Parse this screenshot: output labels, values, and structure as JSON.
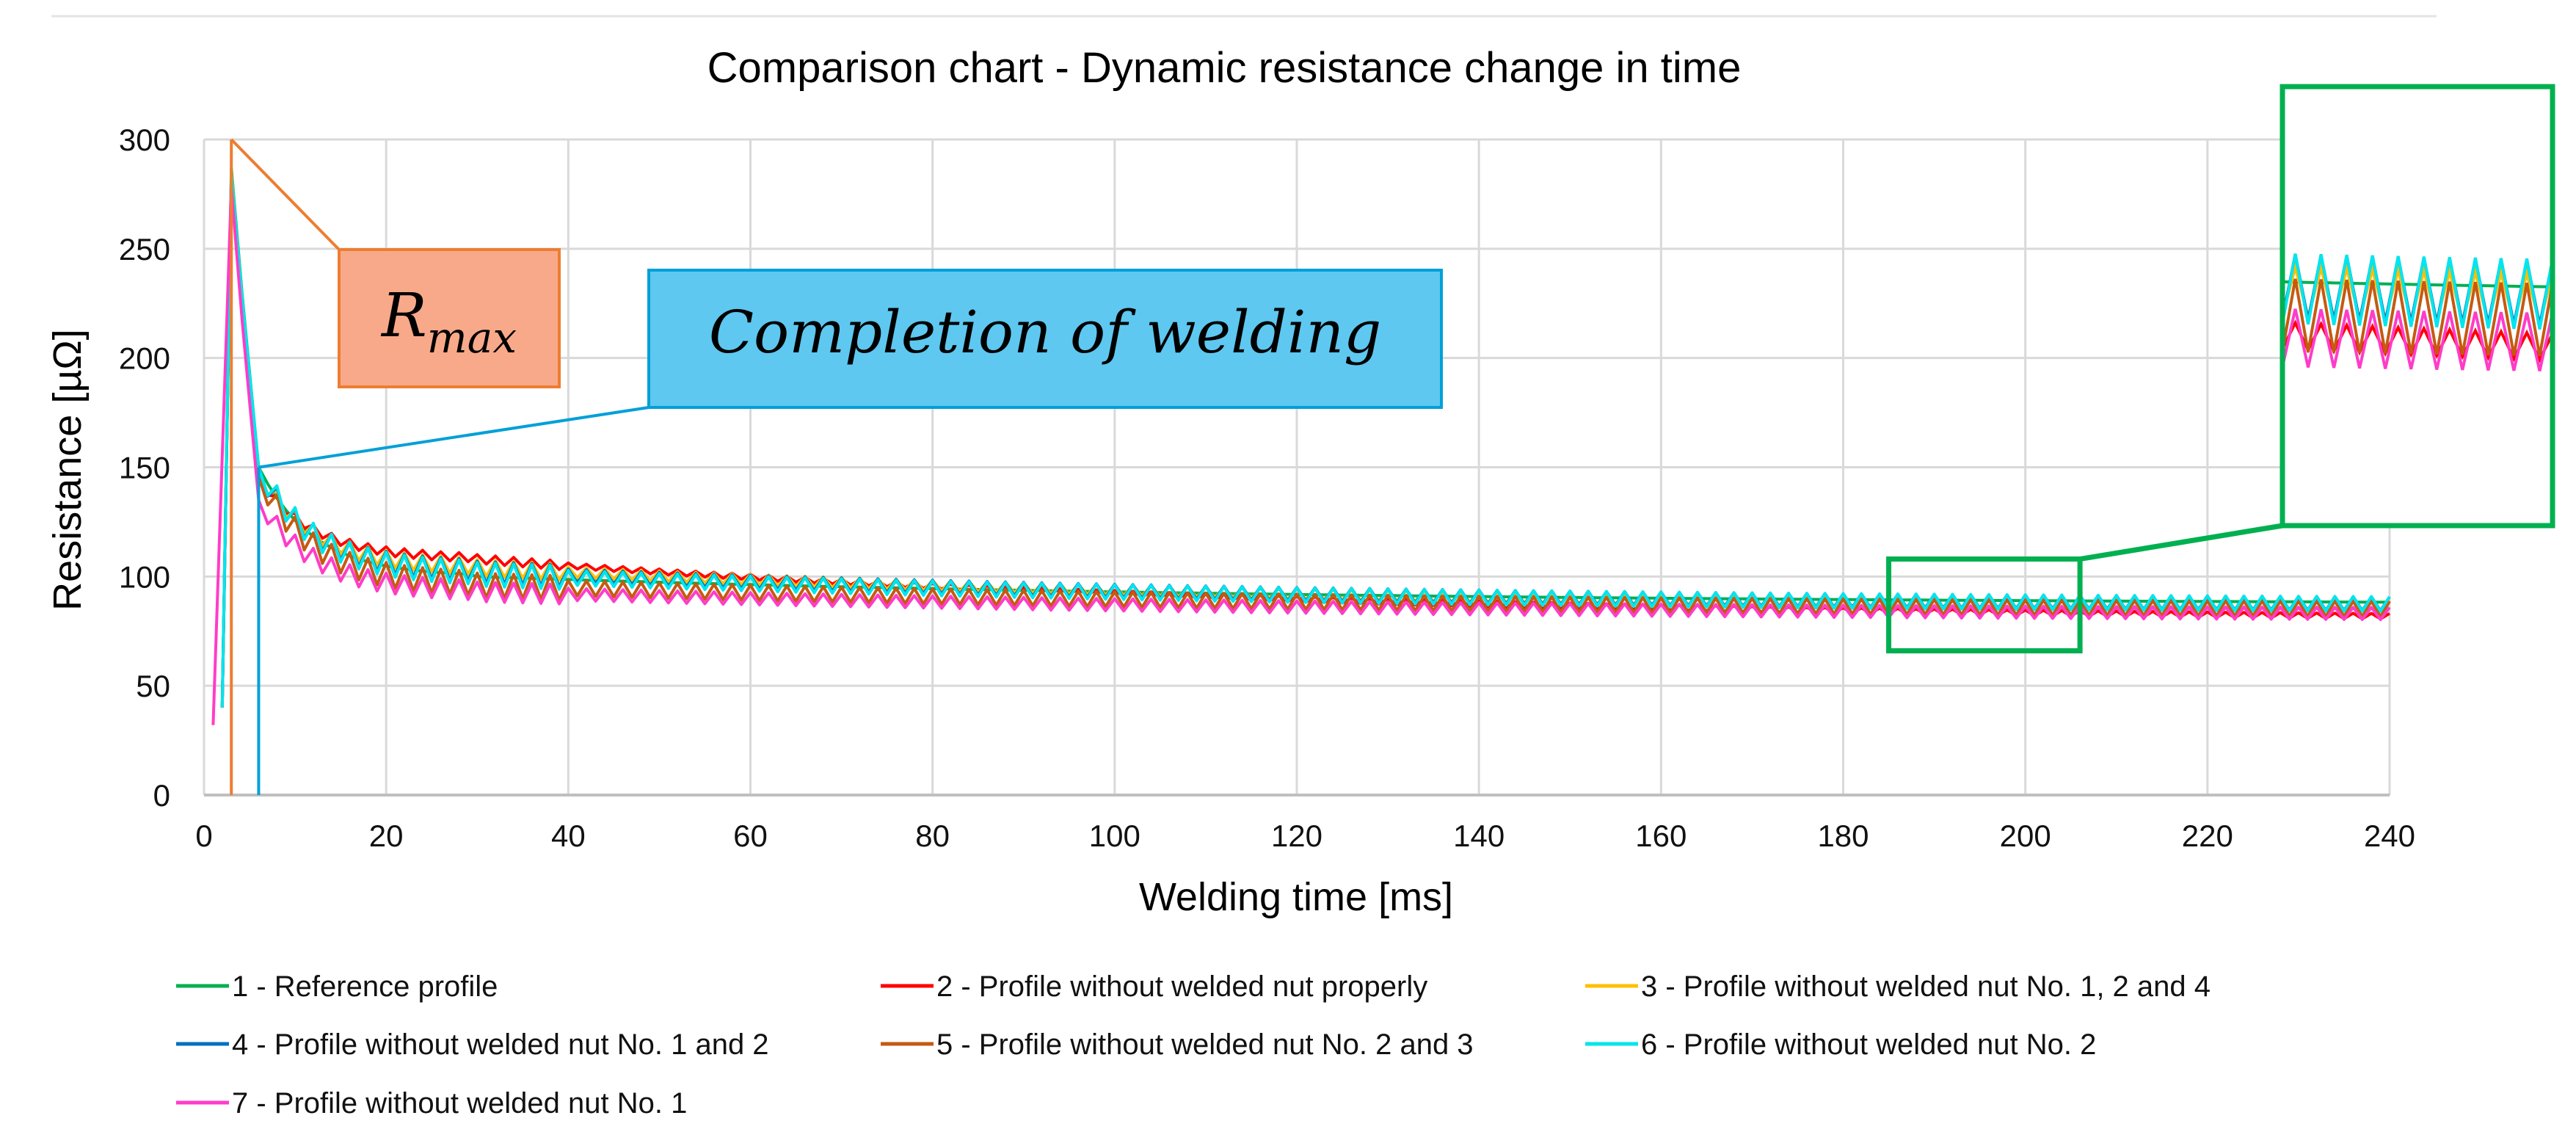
{
  "chart_data": {
    "type": "line",
    "title": "Comparison chart - Dynamic resistance change in time",
    "xlabel": "Welding time [ms]",
    "ylabel": "Resistance [µΩ]",
    "xlim": [
      0,
      240
    ],
    "ylim": [
      0,
      300
    ],
    "xticks": [
      0,
      20,
      40,
      60,
      80,
      100,
      120,
      140,
      160,
      180,
      200,
      220,
      240
    ],
    "yticks": [
      0,
      50,
      100,
      150,
      200,
      250,
      300
    ],
    "grid": true,
    "legend_position": "bottom",
    "series": [
      {
        "name": "1 - Reference profile",
        "color": "#00b050",
        "peak_time": 3,
        "peak": 287,
        "knee": 150,
        "mid": 100,
        "end": 87,
        "osc": 3.5,
        "onset": 2
      },
      {
        "name": "2 - Profile without welded nut properly",
        "color": "#ff0000",
        "peak_time": 3,
        "peak": 280,
        "knee": 145,
        "mid": 108,
        "end": 79,
        "osc": 3.5,
        "onset": 2
      },
      {
        "name": "3 - Profile without welded nut No. 1, 2 and 4",
        "color": "#ffc000",
        "peak_time": 3,
        "peak": 285,
        "knee": 148,
        "mid": 104,
        "end": 85,
        "osc": 3.5,
        "onset": 2
      },
      {
        "name": "4 - Profile without welded nut No. 1 and 2",
        "color": "#0070c0",
        "peak_time": 3,
        "peak": 282,
        "knee": 149,
        "mid": 102,
        "end": 86,
        "osc": 3.5,
        "onset": 2
      },
      {
        "name": "5 - Profile without welded nut No. 2 and 3",
        "color": "#c55a11",
        "peak_time": 3,
        "peak": 283,
        "knee": 146,
        "mid": 96,
        "end": 84,
        "osc": 3.5,
        "onset": 2
      },
      {
        "name": "6 - Profile without welded nut No. 2",
        "color": "#00e5ee",
        "peak_time": 3,
        "peak": 284,
        "knee": 150,
        "mid": 101,
        "end": 86,
        "osc": 3.5,
        "onset": 2
      },
      {
        "name": "7 - Profile without welded nut No. 1",
        "color": "#ff3cc8",
        "peak_time": 3,
        "peak": 278,
        "knee": 135,
        "mid": 93,
        "end": 82,
        "osc": 3.5,
        "onset": 1
      }
    ],
    "annotations": [
      {
        "text_main": "R",
        "text_sub": "max",
        "target": [
          3,
          300
        ],
        "fill": "#f8a98a",
        "stroke": "#ed7d31"
      },
      {
        "text": "Completion of welding",
        "target": [
          6,
          150
        ],
        "fill": "#5ec8f0",
        "stroke": "#00a0d8"
      }
    ],
    "zoom_region": {
      "x": [
        185,
        206
      ],
      "y": [
        66,
        108
      ]
    },
    "markers": [
      {
        "x": 3,
        "from": 300,
        "to": 0,
        "color": "#ed7d31"
      },
      {
        "x": 6,
        "from": 150,
        "to": 0,
        "color": "#00a0d8"
      }
    ]
  }
}
